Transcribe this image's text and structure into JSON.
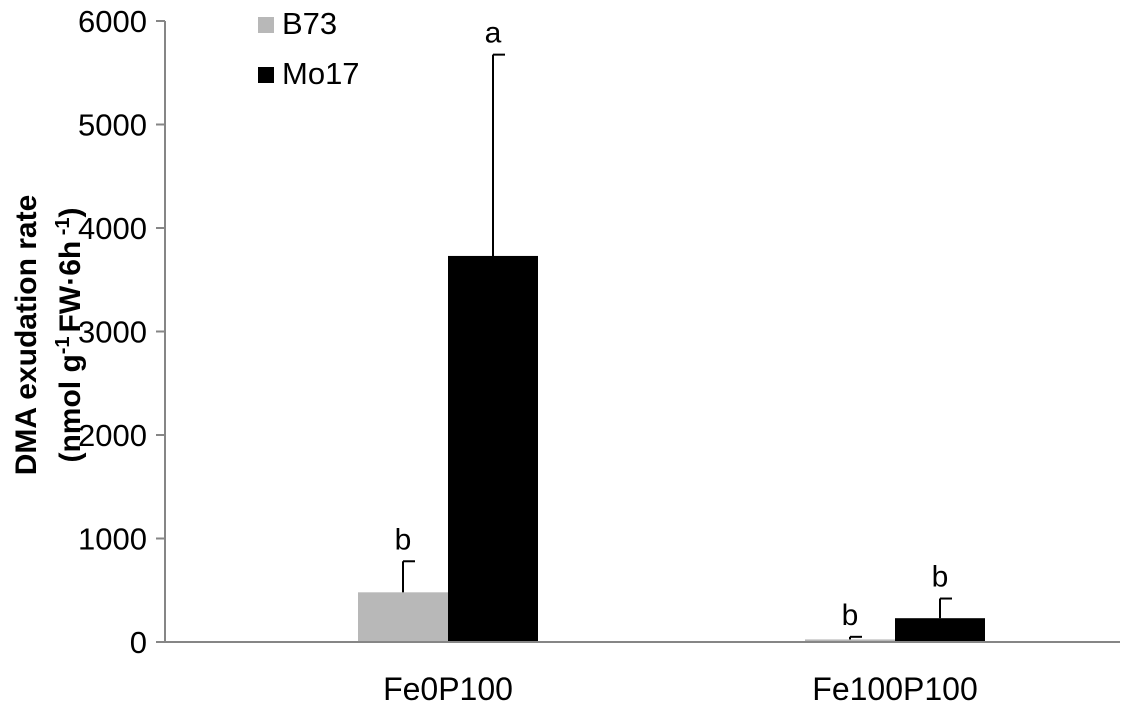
{
  "chart_data": {
    "type": "bar",
    "categories": [
      "Fe0P100",
      "Fe100P100"
    ],
    "series": [
      {
        "name": "B73",
        "color": "#b8b8b8",
        "values": [
          480,
          25
        ],
        "errors": [
          300,
          25
        ],
        "letters": [
          "b",
          "b"
        ]
      },
      {
        "name": "Mo17",
        "color": "#000000",
        "values": [
          3730,
          230
        ],
        "errors": [
          1945,
          190
        ],
        "letters": [
          "a",
          "b"
        ]
      }
    ],
    "ylabel_line1": "DMA exudation rate",
    "ylabel_line2": {
      "pre": "(nmol g",
      "sup1": "-1",
      "mid": "FW·6h",
      "sup2": " -1",
      "post": ")"
    },
    "ylim": [
      0,
      6000
    ],
    "yticks": [
      "0",
      "1000",
      "2000",
      "3000",
      "4000",
      "5000",
      "6000"
    ],
    "grid": false,
    "legend_position": "top-left"
  }
}
